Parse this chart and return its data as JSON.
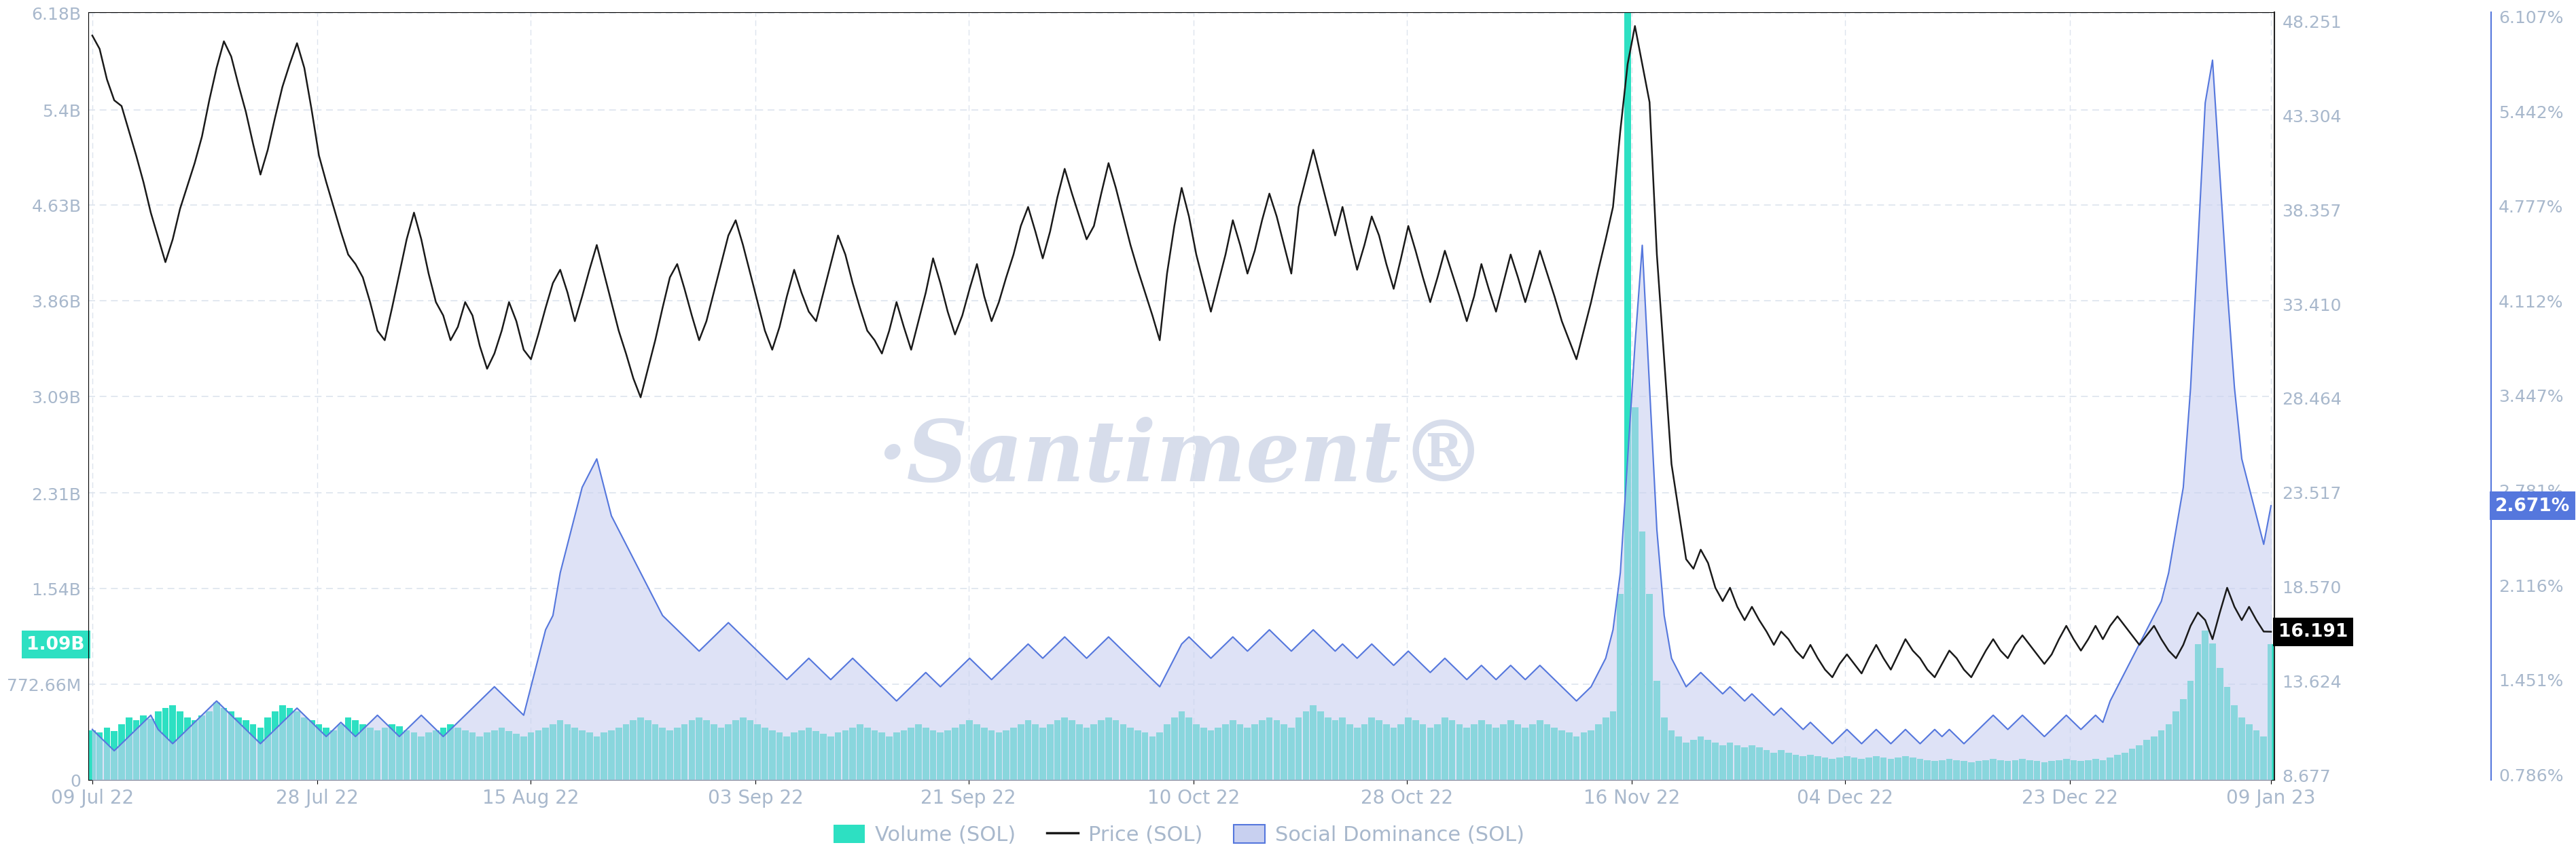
{
  "background_color": "#ffffff",
  "watermark": "·Santiment®",
  "price_yticks": [
    8.677,
    13.624,
    18.57,
    23.517,
    28.464,
    33.41,
    38.357,
    43.304,
    48.251
  ],
  "social_yticks": [
    0.786,
    1.451,
    2.116,
    2.781,
    3.447,
    4.112,
    4.777,
    5.442,
    6.107
  ],
  "volume_yticks_labels": [
    "0",
    "772.66M",
    "1.54B",
    "2.31B",
    "3.09B",
    "3.86B",
    "4.63B",
    "5.4B",
    "6.18B"
  ],
  "volume_max_val": 6180000000.0,
  "price_last": 16.191,
  "social_last": 2.671,
  "volume_last_label": "1.09B",
  "x_tick_labels": [
    "09 Jul 22",
    "28 Jul 22",
    "15 Aug 22",
    "03 Sep 22",
    "21 Sep 22",
    "10 Oct 22",
    "28 Oct 22",
    "16 Nov 22",
    "04 Dec 22",
    "23 Dec 22",
    "09 Jan 23"
  ],
  "volume_color": "#2de0c2",
  "price_color": "#1a1a1a",
  "social_color": "#5577dd",
  "social_fill_color": "#c8d0f0",
  "grid_color": "#dde4ee",
  "axis_label_color": "#a8b8cc",
  "watermark_color": "#d0d8e8",
  "price": [
    47.5,
    46.8,
    45.2,
    44.1,
    43.8,
    42.5,
    41.2,
    39.8,
    38.2,
    36.9,
    35.6,
    36.8,
    38.4,
    39.6,
    40.8,
    42.2,
    44.1,
    45.8,
    47.2,
    46.4,
    44.9,
    43.5,
    41.8,
    40.2,
    41.5,
    43.2,
    44.8,
    46.0,
    47.1,
    45.8,
    43.6,
    41.2,
    39.8,
    38.5,
    37.2,
    36.0,
    35.5,
    34.8,
    33.5,
    32.0,
    31.5,
    33.2,
    35.0,
    36.8,
    38.2,
    36.8,
    35.0,
    33.5,
    32.8,
    31.5,
    32.2,
    33.5,
    32.8,
    31.2,
    30.0,
    30.8,
    32.0,
    33.5,
    32.5,
    31.0,
    30.5,
    31.8,
    33.2,
    34.5,
    35.2,
    34.0,
    32.5,
    33.8,
    35.2,
    36.5,
    35.0,
    33.5,
    32.0,
    30.8,
    29.5,
    28.5,
    30.0,
    31.5,
    33.2,
    34.8,
    35.5,
    34.2,
    32.8,
    31.5,
    32.5,
    34.0,
    35.5,
    37.0,
    37.8,
    36.5,
    35.0,
    33.5,
    32.0,
    31.0,
    32.2,
    33.8,
    35.2,
    34.0,
    33.0,
    32.5,
    34.0,
    35.5,
    37.0,
    36.0,
    34.5,
    33.2,
    32.0,
    31.5,
    30.8,
    32.0,
    33.5,
    32.2,
    31.0,
    32.5,
    34.0,
    35.8,
    34.5,
    33.0,
    31.8,
    32.8,
    34.2,
    35.5,
    33.8,
    32.5,
    33.5,
    34.8,
    36.0,
    37.5,
    38.5,
    37.2,
    35.8,
    37.2,
    39.0,
    40.5,
    39.2,
    38.0,
    36.8,
    37.5,
    39.2,
    40.8,
    39.5,
    38.0,
    36.5,
    35.2,
    34.0,
    32.8,
    31.5,
    35.0,
    37.5,
    39.5,
    38.0,
    36.0,
    34.5,
    33.0,
    34.5,
    36.0,
    37.8,
    36.5,
    35.0,
    36.2,
    37.8,
    39.2,
    38.0,
    36.5,
    35.0,
    38.5,
    40.0,
    41.5,
    40.0,
    38.5,
    37.0,
    38.5,
    36.8,
    35.2,
    36.5,
    38.0,
    37.0,
    35.5,
    34.2,
    35.8,
    37.5,
    36.2,
    34.8,
    33.5,
    34.8,
    36.2,
    35.0,
    33.8,
    32.5,
    33.8,
    35.5,
    34.2,
    33.0,
    34.5,
    36.0,
    34.8,
    33.5,
    34.8,
    36.2,
    35.0,
    33.8,
    32.5,
    31.5,
    30.5,
    32.0,
    33.5,
    35.2,
    36.8,
    38.5,
    42.5,
    46.0,
    48.0,
    46.0,
    44.0,
    36.0,
    30.5,
    25.0,
    22.5,
    20.0,
    19.5,
    20.5,
    19.8,
    18.5,
    17.8,
    18.5,
    17.5,
    16.8,
    17.5,
    16.8,
    16.2,
    15.5,
    16.2,
    15.8,
    15.2,
    14.8,
    15.5,
    14.8,
    14.2,
    13.8,
    14.5,
    15.0,
    14.5,
    14.0,
    14.8,
    15.5,
    14.8,
    14.2,
    15.0,
    15.8,
    15.2,
    14.8,
    14.2,
    13.8,
    14.5,
    15.2,
    14.8,
    14.2,
    13.8,
    14.5,
    15.2,
    15.8,
    15.2,
    14.8,
    15.5,
    16.0,
    15.5,
    15.0,
    14.5,
    15.0,
    15.8,
    16.5,
    15.8,
    15.2,
    15.8,
    16.5,
    15.8,
    16.5,
    17.0,
    16.5,
    16.0,
    15.5,
    16.0,
    16.5,
    15.8,
    15.2,
    14.8,
    15.5,
    16.5,
    17.2,
    16.8,
    15.8,
    17.2,
    18.5,
    17.5,
    16.8,
    17.5,
    16.8,
    16.2,
    16.191
  ],
  "social_dominance": [
    1.1,
    1.05,
    1.0,
    0.95,
    1.0,
    1.05,
    1.1,
    1.15,
    1.2,
    1.1,
    1.05,
    1.0,
    1.05,
    1.1,
    1.15,
    1.2,
    1.25,
    1.3,
    1.25,
    1.2,
    1.15,
    1.1,
    1.05,
    1.0,
    1.05,
    1.1,
    1.15,
    1.2,
    1.25,
    1.2,
    1.15,
    1.1,
    1.05,
    1.1,
    1.15,
    1.1,
    1.05,
    1.1,
    1.15,
    1.2,
    1.15,
    1.1,
    1.05,
    1.1,
    1.15,
    1.2,
    1.15,
    1.1,
    1.05,
    1.1,
    1.15,
    1.2,
    1.25,
    1.3,
    1.35,
    1.4,
    1.35,
    1.3,
    1.25,
    1.2,
    1.4,
    1.6,
    1.8,
    1.9,
    2.2,
    2.4,
    2.6,
    2.8,
    2.9,
    3.0,
    2.8,
    2.6,
    2.5,
    2.4,
    2.3,
    2.2,
    2.1,
    2.0,
    1.9,
    1.85,
    1.8,
    1.75,
    1.7,
    1.65,
    1.7,
    1.75,
    1.8,
    1.85,
    1.8,
    1.75,
    1.7,
    1.65,
    1.6,
    1.55,
    1.5,
    1.45,
    1.5,
    1.55,
    1.6,
    1.55,
    1.5,
    1.45,
    1.5,
    1.55,
    1.6,
    1.55,
    1.5,
    1.45,
    1.4,
    1.35,
    1.3,
    1.35,
    1.4,
    1.45,
    1.5,
    1.45,
    1.4,
    1.45,
    1.5,
    1.55,
    1.6,
    1.55,
    1.5,
    1.45,
    1.5,
    1.55,
    1.6,
    1.65,
    1.7,
    1.65,
    1.6,
    1.65,
    1.7,
    1.75,
    1.7,
    1.65,
    1.6,
    1.65,
    1.7,
    1.75,
    1.7,
    1.65,
    1.6,
    1.55,
    1.5,
    1.45,
    1.4,
    1.5,
    1.6,
    1.7,
    1.75,
    1.7,
    1.65,
    1.6,
    1.65,
    1.7,
    1.75,
    1.7,
    1.65,
    1.7,
    1.75,
    1.8,
    1.75,
    1.7,
    1.65,
    1.7,
    1.75,
    1.8,
    1.75,
    1.7,
    1.65,
    1.7,
    1.65,
    1.6,
    1.65,
    1.7,
    1.65,
    1.6,
    1.55,
    1.6,
    1.65,
    1.6,
    1.55,
    1.5,
    1.55,
    1.6,
    1.55,
    1.5,
    1.45,
    1.5,
    1.55,
    1.5,
    1.45,
    1.5,
    1.55,
    1.5,
    1.45,
    1.5,
    1.55,
    1.5,
    1.45,
    1.4,
    1.35,
    1.3,
    1.35,
    1.4,
    1.5,
    1.6,
    1.8,
    2.2,
    3.0,
    3.8,
    4.5,
    3.5,
    2.5,
    1.9,
    1.6,
    1.5,
    1.4,
    1.45,
    1.5,
    1.45,
    1.4,
    1.35,
    1.4,
    1.35,
    1.3,
    1.35,
    1.3,
    1.25,
    1.2,
    1.25,
    1.2,
    1.15,
    1.1,
    1.15,
    1.1,
    1.05,
    1.0,
    1.05,
    1.1,
    1.05,
    1.0,
    1.05,
    1.1,
    1.05,
    1.0,
    1.05,
    1.1,
    1.05,
    1.0,
    1.05,
    1.1,
    1.05,
    1.1,
    1.05,
    1.0,
    1.05,
    1.1,
    1.15,
    1.2,
    1.15,
    1.1,
    1.15,
    1.2,
    1.15,
    1.1,
    1.05,
    1.1,
    1.15,
    1.2,
    1.15,
    1.1,
    1.15,
    1.2,
    1.15,
    1.3,
    1.4,
    1.5,
    1.6,
    1.7,
    1.8,
    1.9,
    2.0,
    2.2,
    2.5,
    2.8,
    3.5,
    4.5,
    5.5,
    5.8,
    5.0,
    4.2,
    3.5,
    3.0,
    2.8,
    2.6,
    2.4,
    2.671
  ],
  "volume": [
    400000000.0,
    380000000.0,
    420000000.0,
    390000000.0,
    450000000.0,
    500000000.0,
    480000000.0,
    520000000.0,
    490000000.0,
    550000000.0,
    580000000.0,
    600000000.0,
    550000000.0,
    500000000.0,
    480000000.0,
    520000000.0,
    550000000.0,
    620000000.0,
    580000000.0,
    550000000.0,
    500000000.0,
    480000000.0,
    450000000.0,
    420000000.0,
    500000000.0,
    550000000.0,
    600000000.0,
    580000000.0,
    550000000.0,
    500000000.0,
    480000000.0,
    450000000.0,
    420000000.0,
    400000000.0,
    450000000.0,
    500000000.0,
    480000000.0,
    450000000.0,
    420000000.0,
    400000000.0,
    420000000.0,
    450000000.0,
    430000000.0,
    400000000.0,
    380000000.0,
    350000000.0,
    380000000.0,
    400000000.0,
    420000000.0,
    450000000.0,
    420000000.0,
    400000000.0,
    380000000.0,
    350000000.0,
    380000000.0,
    400000000.0,
    420000000.0,
    390000000.0,
    370000000.0,
    350000000.0,
    380000000.0,
    400000000.0,
    420000000.0,
    450000000.0,
    480000000.0,
    450000000.0,
    420000000.0,
    400000000.0,
    380000000.0,
    350000000.0,
    380000000.0,
    400000000.0,
    420000000.0,
    450000000.0,
    480000000.0,
    500000000.0,
    480000000.0,
    450000000.0,
    420000000.0,
    400000000.0,
    420000000.0,
    450000000.0,
    480000000.0,
    500000000.0,
    480000000.0,
    450000000.0,
    420000000.0,
    450000000.0,
    480000000.0,
    500000000.0,
    480000000.0,
    450000000.0,
    420000000.0,
    400000000.0,
    380000000.0,
    350000000.0,
    380000000.0,
    400000000.0,
    420000000.0,
    390000000.0,
    370000000.0,
    350000000.0,
    380000000.0,
    400000000.0,
    420000000.0,
    450000000.0,
    420000000.0,
    400000000.0,
    380000000.0,
    350000000.0,
    380000000.0,
    400000000.0,
    420000000.0,
    450000000.0,
    420000000.0,
    400000000.0,
    380000000.0,
    400000000.0,
    420000000.0,
    450000000.0,
    480000000.0,
    450000000.0,
    420000000.0,
    400000000.0,
    380000000.0,
    400000000.0,
    420000000.0,
    450000000.0,
    480000000.0,
    450000000.0,
    420000000.0,
    450000000.0,
    480000000.0,
    500000000.0,
    480000000.0,
    450000000.0,
    420000000.0,
    450000000.0,
    480000000.0,
    500000000.0,
    480000000.0,
    450000000.0,
    420000000.0,
    400000000.0,
    380000000.0,
    350000000.0,
    380000000.0,
    450000000.0,
    500000000.0,
    550000000.0,
    500000000.0,
    450000000.0,
    420000000.0,
    400000000.0,
    420000000.0,
    450000000.0,
    480000000.0,
    450000000.0,
    420000000.0,
    450000000.0,
    480000000.0,
    500000000.0,
    480000000.0,
    450000000.0,
    420000000.0,
    500000000.0,
    550000000.0,
    600000000.0,
    550000000.0,
    500000000.0,
    480000000.0,
    500000000.0,
    450000000.0,
    420000000.0,
    450000000.0,
    500000000.0,
    480000000.0,
    450000000.0,
    420000000.0,
    450000000.0,
    500000000.0,
    480000000.0,
    450000000.0,
    420000000.0,
    450000000.0,
    500000000.0,
    480000000.0,
    450000000.0,
    420000000.0,
    450000000.0,
    480000000.0,
    450000000.0,
    420000000.0,
    450000000.0,
    480000000.0,
    450000000.0,
    420000000.0,
    450000000.0,
    480000000.0,
    450000000.0,
    420000000.0,
    400000000.0,
    380000000.0,
    350000000.0,
    380000000.0,
    400000000.0,
    450000000.0,
    500000000.0,
    550000000.0,
    1500000000.0,
    6180000000.0,
    3000000000.0,
    2000000000.0,
    1500000000.0,
    800000000.0,
    500000000.0,
    400000000.0,
    350000000.0,
    300000000.0,
    320000000.0,
    350000000.0,
    320000000.0,
    300000000.0,
    280000000.0,
    300000000.0,
    280000000.0,
    260000000.0,
    280000000.0,
    260000000.0,
    240000000.0,
    220000000.0,
    240000000.0,
    220000000.0,
    200000000.0,
    190000000.0,
    200000000.0,
    190000000.0,
    180000000.0,
    170000000.0,
    180000000.0,
    190000000.0,
    180000000.0,
    170000000.0,
    180000000.0,
    190000000.0,
    180000000.0,
    170000000.0,
    180000000.0,
    190000000.0,
    180000000.0,
    170000000.0,
    160000000.0,
    150000000.0,
    160000000.0,
    170000000.0,
    160000000.0,
    150000000.0,
    140000000.0,
    150000000.0,
    160000000.0,
    170000000.0,
    160000000.0,
    150000000.0,
    160000000.0,
    170000000.0,
    160000000.0,
    150000000.0,
    140000000.0,
    150000000.0,
    160000000.0,
    170000000.0,
    160000000.0,
    150000000.0,
    160000000.0,
    170000000.0,
    160000000.0,
    180000000.0,
    200000000.0,
    220000000.0,
    250000000.0,
    280000000.0,
    320000000.0,
    350000000.0,
    400000000.0,
    450000000.0,
    550000000.0,
    650000000.0,
    800000000.0,
    1090000000.0,
    1200000000.0,
    1100000000.0,
    900000000.0,
    750000000.0,
    600000000.0,
    500000000.0,
    450000000.0,
    400000000.0,
    350000000.0,
    1090000000.0
  ]
}
